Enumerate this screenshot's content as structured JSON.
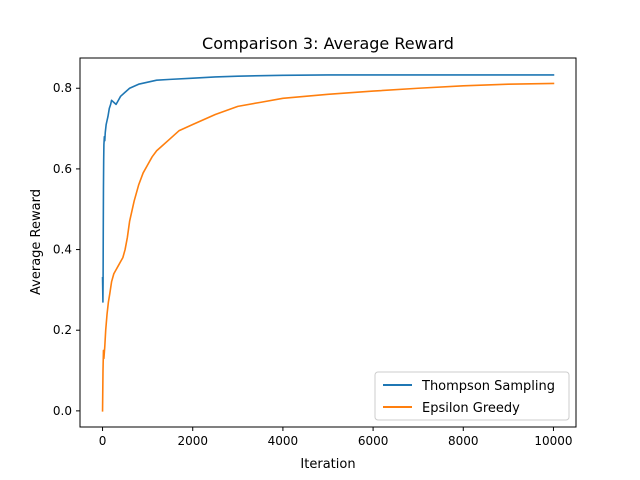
{
  "chart_data": {
    "type": "line",
    "title": "Comparison 3: Average Reward",
    "xlabel": "Iteration",
    "ylabel": "Average Reward",
    "xlim": [
      -500,
      10500
    ],
    "ylim": [
      -0.04,
      0.875
    ],
    "xticks": [
      0,
      2000,
      4000,
      6000,
      8000,
      10000
    ],
    "xtick_labels": [
      "0",
      "2000",
      "4000",
      "6000",
      "8000",
      "10000"
    ],
    "yticks": [
      0.0,
      0.2,
      0.4,
      0.6,
      0.8
    ],
    "ytick_labels": [
      "0.0",
      "0.2",
      "0.4",
      "0.6",
      "0.8"
    ],
    "grid": false,
    "legend_position": "lower-right",
    "series": [
      {
        "name": "Thompson Sampling",
        "color": "#1f77b4",
        "points": [
          [
            0,
            0.33
          ],
          [
            4,
            0.3
          ],
          [
            8,
            0.27
          ],
          [
            12,
            0.32
          ],
          [
            16,
            0.45
          ],
          [
            20,
            0.55
          ],
          [
            25,
            0.62
          ],
          [
            30,
            0.66
          ],
          [
            40,
            0.68
          ],
          [
            50,
            0.67
          ],
          [
            60,
            0.69
          ],
          [
            80,
            0.71
          ],
          [
            100,
            0.72
          ],
          [
            120,
            0.73
          ],
          [
            150,
            0.75
          ],
          [
            180,
            0.76
          ],
          [
            200,
            0.77
          ],
          [
            250,
            0.765
          ],
          [
            300,
            0.76
          ],
          [
            350,
            0.77
          ],
          [
            400,
            0.78
          ],
          [
            500,
            0.79
          ],
          [
            600,
            0.8
          ],
          [
            700,
            0.805
          ],
          [
            800,
            0.81
          ],
          [
            1000,
            0.815
          ],
          [
            1200,
            0.82
          ],
          [
            1500,
            0.822
          ],
          [
            2000,
            0.825
          ],
          [
            2500,
            0.828
          ],
          [
            3000,
            0.83
          ],
          [
            4000,
            0.832
          ],
          [
            5000,
            0.833
          ],
          [
            6000,
            0.833
          ],
          [
            7000,
            0.833
          ],
          [
            8000,
            0.833
          ],
          [
            9000,
            0.833
          ],
          [
            10000,
            0.833
          ]
        ]
      },
      {
        "name": "Epsilon Greedy",
        "color": "#ff7f0e",
        "points": [
          [
            0,
            0.0
          ],
          [
            10,
            0.1
          ],
          [
            20,
            0.15
          ],
          [
            30,
            0.13
          ],
          [
            50,
            0.16
          ],
          [
            70,
            0.2
          ],
          [
            100,
            0.24
          ],
          [
            130,
            0.27
          ],
          [
            160,
            0.29
          ],
          [
            200,
            0.32
          ],
          [
            250,
            0.34
          ],
          [
            300,
            0.35
          ],
          [
            350,
            0.36
          ],
          [
            400,
            0.37
          ],
          [
            450,
            0.38
          ],
          [
            500,
            0.4
          ],
          [
            550,
            0.43
          ],
          [
            600,
            0.47
          ],
          [
            700,
            0.52
          ],
          [
            800,
            0.56
          ],
          [
            900,
            0.59
          ],
          [
            1000,
            0.61
          ],
          [
            1100,
            0.63
          ],
          [
            1200,
            0.645
          ],
          [
            1300,
            0.655
          ],
          [
            1500,
            0.675
          ],
          [
            1700,
            0.695
          ],
          [
            2000,
            0.71
          ],
          [
            2500,
            0.735
          ],
          [
            3000,
            0.755
          ],
          [
            3500,
            0.765
          ],
          [
            4000,
            0.775
          ],
          [
            4500,
            0.78
          ],
          [
            5000,
            0.785
          ],
          [
            6000,
            0.793
          ],
          [
            7000,
            0.8
          ],
          [
            8000,
            0.806
          ],
          [
            9000,
            0.81
          ],
          [
            10000,
            0.812
          ]
        ]
      }
    ]
  }
}
